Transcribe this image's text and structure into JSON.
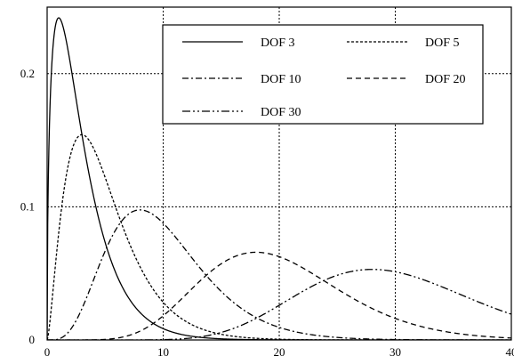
{
  "chart_data": {
    "type": "line",
    "title": "",
    "xlabel": "",
    "ylabel": "",
    "xlim": [
      0,
      40
    ],
    "ylim": [
      0,
      0.25
    ],
    "x_ticks": [
      {
        "value": 0,
        "label": "0"
      },
      {
        "value": 10,
        "label": "10"
      },
      {
        "value": 20,
        "label": "20"
      },
      {
        "value": 30,
        "label": "30"
      },
      {
        "value": 40,
        "label": "40"
      }
    ],
    "y_ticks": [
      {
        "value": 0,
        "label": "0"
      },
      {
        "value": 0.1,
        "label": "0.1"
      },
      {
        "value": 0.2,
        "label": "0.2"
      }
    ],
    "grid": true,
    "legend_position": "top-right",
    "series": [
      {
        "name": "DOF 3",
        "dof": 3,
        "dash": "solid"
      },
      {
        "name": "DOF 5",
        "dof": 5,
        "dash": "dotted"
      },
      {
        "name": "DOF 10",
        "dof": 10,
        "dash": "dashdot"
      },
      {
        "name": "DOF 20",
        "dof": 20,
        "dash": "dashed"
      },
      {
        "name": "DOF 30",
        "dof": 30,
        "dash": "dashdotdot"
      }
    ]
  }
}
